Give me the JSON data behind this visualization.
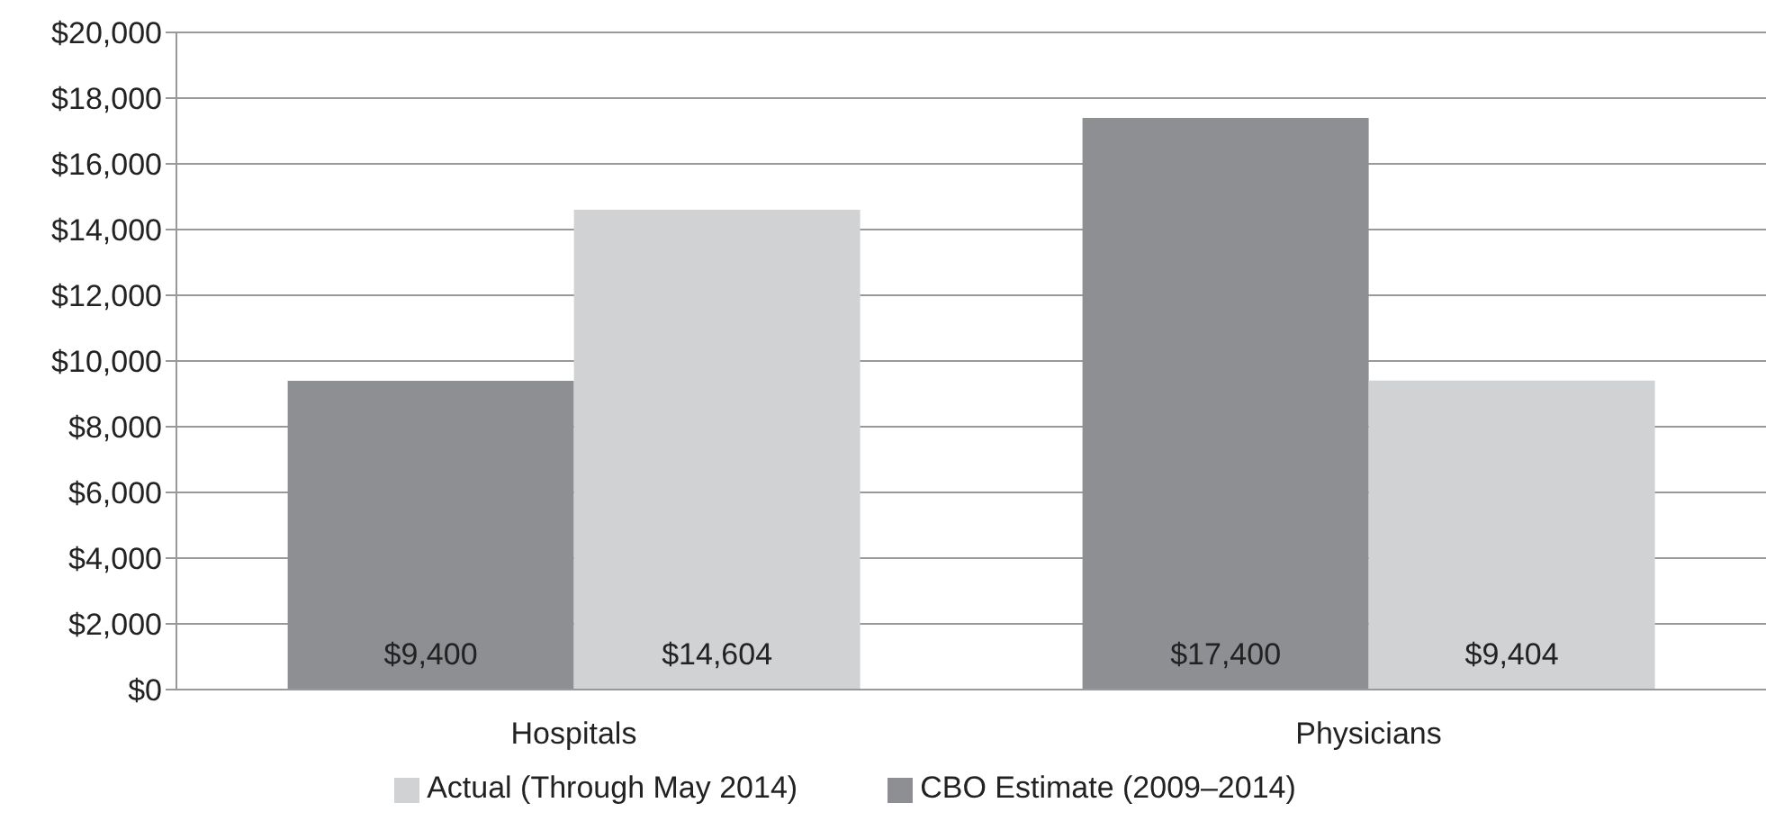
{
  "chart_data": {
    "type": "bar",
    "categories": [
      "Hospitals",
      "Physicians"
    ],
    "series": [
      {
        "name": "CBO Estimate (2009–2014)",
        "color": "#8e8f93",
        "values": [
          9400,
          17400
        ],
        "value_labels": [
          "$9,400",
          "$17,400"
        ]
      },
      {
        "name": "Actual (Through May 2014)",
        "color": "#d1d2d4",
        "values": [
          14604,
          9404
        ],
        "value_labels": [
          "$14,604",
          "$9,404"
        ]
      }
    ],
    "ylim": [
      0,
      20000
    ],
    "yticks": [
      {
        "value": 0,
        "label": "$0"
      },
      {
        "value": 2000,
        "label": "$2,000"
      },
      {
        "value": 4000,
        "label": "$4,000"
      },
      {
        "value": 6000,
        "label": "$6,000"
      },
      {
        "value": 8000,
        "label": "$8,000"
      },
      {
        "value": 10000,
        "label": "$10,000"
      },
      {
        "value": 12000,
        "label": "$12,000"
      },
      {
        "value": 14000,
        "label": "$14,000"
      },
      {
        "value": 16000,
        "label": "$16,000"
      },
      {
        "value": 18000,
        "label": "$18,000"
      },
      {
        "value": 20000,
        "label": "$20,000"
      }
    ],
    "grid": "y",
    "legend": "bottom"
  }
}
